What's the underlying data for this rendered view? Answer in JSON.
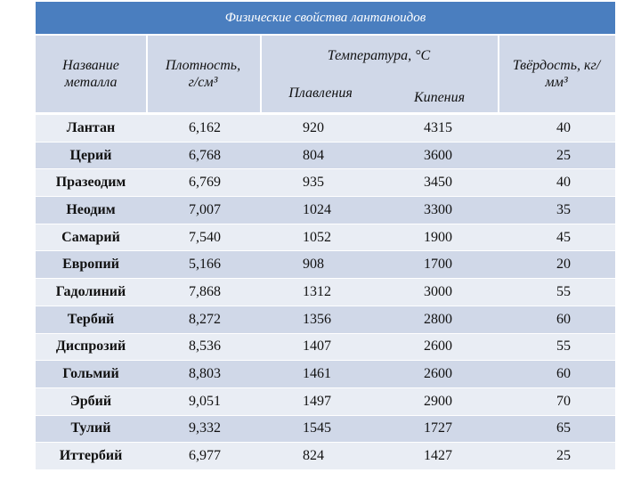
{
  "title": "Физические свойства лантаноидов",
  "headers": {
    "name": "Название металла",
    "density": "Плотность, г/см³",
    "temperature": "Температура, °С",
    "melting": "Плавления",
    "boiling": "Кипения",
    "hardness": "Твёрдость, кг/мм³"
  },
  "rows": [
    {
      "name": "Лантан",
      "density": "6,162",
      "melting": "920",
      "boiling": "4315",
      "hardness": "40"
    },
    {
      "name": "Церий",
      "density": "6,768",
      "melting": "804",
      "boiling": "3600",
      "hardness": "25"
    },
    {
      "name": "Празеодим",
      "density": "6,769",
      "melting": "935",
      "boiling": "3450",
      "hardness": "40"
    },
    {
      "name": "Неодим",
      "density": "7,007",
      "melting": "1024",
      "boiling": "3300",
      "hardness": "35"
    },
    {
      "name": "Самарий",
      "density": "7,540",
      "melting": "1052",
      "boiling": "1900",
      "hardness": "45"
    },
    {
      "name": "Европий",
      "density": "5,166",
      "melting": "908",
      "boiling": "1700",
      "hardness": "20"
    },
    {
      "name": "Гадолиний",
      "density": "7,868",
      "melting": "1312",
      "boiling": "3000",
      "hardness": "55"
    },
    {
      "name": "Тербий",
      "density": "8,272",
      "melting": "1356",
      "boiling": "2800",
      "hardness": "60"
    },
    {
      "name": "Диспрозий",
      "density": "8,536",
      "melting": "1407",
      "boiling": "2600",
      "hardness": "55"
    },
    {
      "name": "Гольмий",
      "density": "8,803",
      "melting": "1461",
      "boiling": "2600",
      "hardness": "60"
    },
    {
      "name": "Эрбий",
      "density": "9,051",
      "melting": "1497",
      "boiling": "2900",
      "hardness": "70"
    },
    {
      "name": "Тулий",
      "density": "9,332",
      "melting": "1545",
      "boiling": "1727",
      "hardness": "65"
    },
    {
      "name": "Иттербий",
      "density": "6,977",
      "melting": "824",
      "boiling": "1427",
      "hardness": "25"
    }
  ],
  "colors": {
    "title_bg": "#4a7ebf",
    "header_bg": "#d0d8e8",
    "row_light": "#e9edf4",
    "row_dark": "#d0d8e8"
  }
}
